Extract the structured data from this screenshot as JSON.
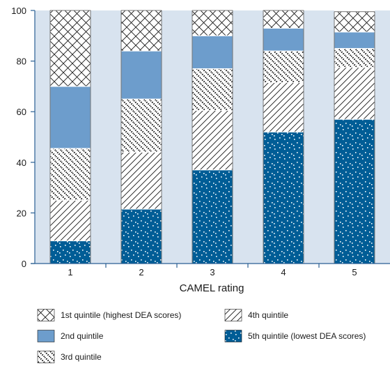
{
  "chart_data": {
    "type": "bar",
    "stacked": true,
    "xlabel": "CAMEL rating",
    "ylabel": "",
    "ylim": [
      0,
      100
    ],
    "yticks": [
      0,
      20,
      40,
      60,
      80,
      100
    ],
    "categories": [
      "1",
      "2",
      "3",
      "4",
      "5"
    ],
    "series": [
      {
        "name": "5th quintile (lowest DEA scores)",
        "pattern": "dots",
        "color": "#005d96",
        "values": [
          9,
          21.5,
          37,
          52,
          57
        ]
      },
      {
        "name": "4th quintile",
        "pattern": "hatch",
        "color": "#ffffff",
        "values": [
          16,
          22.5,
          23.5,
          19.5,
          20.5
        ]
      },
      {
        "name": "3rd quintile",
        "pattern": "dotted-diagonal",
        "color": "#ffffff",
        "values": [
          20.5,
          21,
          16.5,
          12.5,
          7.5
        ]
      },
      {
        "name": "2nd quintile",
        "pattern": "solid",
        "color": "#6d9dcc",
        "values": [
          24.5,
          19,
          13,
          9,
          6.5
        ]
      },
      {
        "name": "1st quintile (highest DEA scores)",
        "pattern": "crosshatch",
        "color": "#ffffff",
        "values": [
          30,
          16,
          10,
          7,
          8
        ]
      }
    ],
    "legend_order": [
      "1st quintile (highest DEA scores)",
      "4th quintile",
      "2nd quintile",
      "5th quintile (lowest DEA scores)",
      "3rd quintile"
    ],
    "grid": false,
    "legend_position": "bottom",
    "colors": {
      "band": "#d8e3ef",
      "dark_blue": "#005d96",
      "medium_blue": "#6d9dcc",
      "axis": "#2a5f93"
    }
  }
}
